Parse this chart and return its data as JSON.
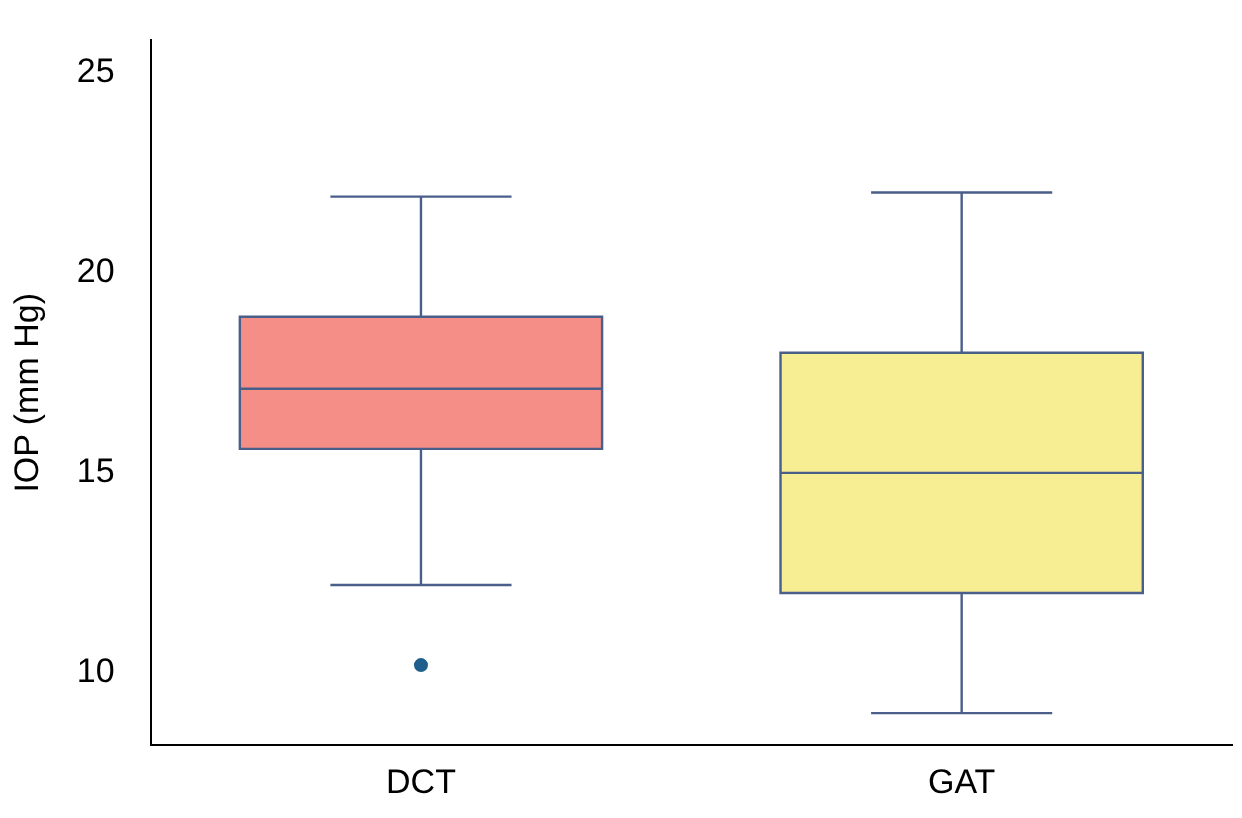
{
  "chart_data": {
    "type": "box",
    "ylabel": "IOP (mm Hg)",
    "categories": [
      "DCT",
      "GAT"
    ],
    "colors": [
      "#f48e86",
      "#f7ee94"
    ],
    "boxes": [
      {
        "low": 12.2,
        "q1": 15.6,
        "median": 17.1,
        "q3": 18.9,
        "high": 21.9,
        "outliers": [
          10.2
        ]
      },
      {
        "low": 9.0,
        "q1": 12.0,
        "median": 15.0,
        "q3": 18.0,
        "high": 22.0
      }
    ],
    "ylim": [
      8.2,
      25.8
    ],
    "yticks": [
      10,
      15,
      20,
      25
    ],
    "grid": false,
    "legend": false
  }
}
